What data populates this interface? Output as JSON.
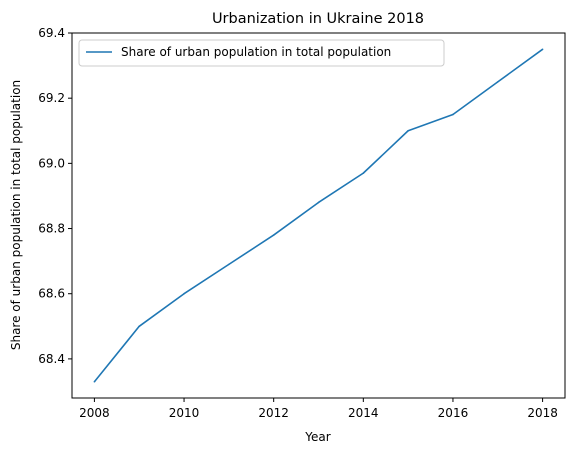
{
  "chart_data": {
    "type": "line",
    "title": "Urbanization in Ukraine 2018",
    "xlabel": "Year",
    "ylabel": "Share of urban population in total population",
    "xlim": [
      2007.5,
      2018.5
    ],
    "ylim": [
      68.28,
      69.4
    ],
    "xticks": [
      2008,
      2010,
      2012,
      2014,
      2016,
      2018
    ],
    "yticks": [
      68.4,
      68.6,
      68.8,
      69.0,
      69.2,
      69.4
    ],
    "ytick_labels": [
      "68.4",
      "68.6",
      "68.8",
      "69.0",
      "69.2",
      "69.4"
    ],
    "grid": false,
    "legend_position": "upper-left",
    "series": [
      {
        "name": "Share of urban population in total population",
        "color": "#1f77b4",
        "x": [
          2008,
          2009,
          2010,
          2011,
          2012,
          2013,
          2014,
          2015,
          2016,
          2017,
          2018
        ],
        "y": [
          68.33,
          68.5,
          68.6,
          68.69,
          68.78,
          68.88,
          68.97,
          69.1,
          69.15,
          69.25,
          69.35
        ]
      }
    ]
  }
}
